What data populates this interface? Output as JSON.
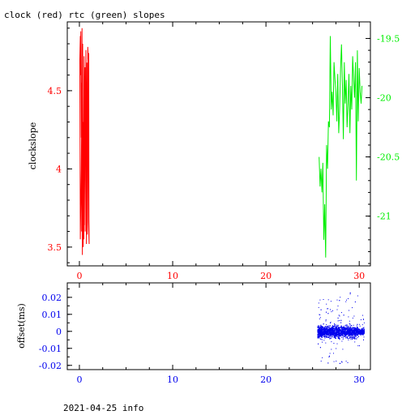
{
  "title": "clock (red) rtc (green) slopes",
  "footer": "2021-04-25 info",
  "colors": {
    "clock": "#ff0000",
    "rtc": "#00ee00",
    "offset": "#0000ee",
    "axes": "#000000",
    "background": "#ffffff"
  },
  "chart_data": [
    {
      "type": "line",
      "ylabel": "clockslope",
      "xlim": [
        -1.3,
        31.2
      ],
      "ylim": [
        3.38,
        4.94
      ],
      "y2lim": [
        -21.42,
        -19.36
      ],
      "x_ticks": [
        0,
        10,
        20,
        30
      ],
      "y_ticks": [
        3.5,
        4,
        4.5
      ],
      "y_tick_labels": [
        "3.5",
        "4",
        "4.5"
      ],
      "y2_ticks": [
        -21,
        -20.5,
        -20,
        -19.5
      ],
      "y2_tick_labels": [
        "-21",
        "-20.5",
        "-20",
        "-19.5"
      ],
      "series": [
        {
          "color": "#ff0000",
          "axis": "left",
          "x": [
            0.05,
            0.1,
            0.12,
            0.15,
            0.2,
            0.22,
            0.25,
            0.28,
            0.3,
            0.32,
            0.35,
            0.38,
            0.4,
            0.42,
            0.45,
            0.48,
            0.5,
            0.55,
            0.6,
            0.62,
            0.65,
            0.7,
            0.75,
            0.8,
            0.85,
            0.9,
            0.95,
            1.0,
            1.02,
            1.05,
            0.98,
            0.9,
            0.8,
            0.7,
            0.6,
            0.5,
            0.4,
            0.3,
            0.2,
            0.1,
            0.05
          ],
          "y": [
            4.7,
            4.85,
            4.6,
            4.88,
            4.2,
            4.55,
            3.6,
            4.9,
            4.0,
            3.45,
            4.8,
            3.5,
            4.0,
            3.7,
            4.3,
            3.55,
            4.72,
            3.95,
            4.65,
            3.6,
            4.1,
            4.76,
            3.52,
            4.68,
            3.58,
            4.78,
            4.7,
            4.74,
            3.68,
            3.52,
            3.66,
            4.72,
            3.6,
            4.66,
            3.64,
            4.7,
            3.5,
            4.78,
            4.0,
            3.55,
            4.7
          ]
        },
        {
          "color": "#00ee00",
          "axis": "right",
          "x": [
            25.7,
            25.8,
            25.9,
            26.0,
            26.1,
            26.2,
            26.3,
            26.4,
            26.5,
            26.6,
            26.7,
            26.8,
            26.9,
            27.0,
            27.1,
            27.2,
            27.3,
            27.4,
            27.5,
            27.6,
            27.7,
            27.8,
            27.9,
            28.0,
            28.1,
            28.2,
            28.3,
            28.4,
            28.5,
            28.6,
            28.7,
            28.8,
            28.9,
            29.0,
            29.1,
            29.2,
            29.3,
            29.4,
            29.5,
            29.6,
            29.7,
            29.8,
            29.9,
            30.0,
            30.1,
            30.2,
            30.3
          ],
          "y": [
            -20.5,
            -20.75,
            -20.6,
            -20.8,
            -20.55,
            -21.2,
            -20.9,
            -21.35,
            -20.4,
            -20.6,
            -20.2,
            -20.25,
            -19.48,
            -20.1,
            -19.95,
            -20.15,
            -19.7,
            -19.85,
            -19.95,
            -20.2,
            -19.8,
            -20.3,
            -20.1,
            -19.75,
            -19.55,
            -19.9,
            -20.35,
            -19.7,
            -20.05,
            -19.85,
            -20.25,
            -20.05,
            -19.8,
            -20.3,
            -19.9,
            -20.1,
            -19.65,
            -19.85,
            -20.0,
            -19.7,
            -20.7,
            -19.6,
            -20.2,
            -19.75,
            -19.95,
            -20.05,
            -19.9
          ]
        }
      ]
    },
    {
      "type": "scatter",
      "ylabel": "offset(ms)",
      "xlim": [
        -1.3,
        31.2
      ],
      "ylim": [
        -0.0225,
        0.0285
      ],
      "x_ticks": [
        0,
        10,
        20,
        30
      ],
      "y_ticks": [
        -0.02,
        -0.01,
        0,
        0.01,
        0.02
      ],
      "y_tick_labels": [
        "-0.02",
        "-0.01",
        "0",
        "0.01",
        "0.02"
      ],
      "series": [
        {
          "color": "#0000ee",
          "x_range": [
            25.5,
            30.5
          ],
          "center": 0.0,
          "typical_spread": [
            -0.006,
            0.006
          ],
          "extremes": [
            -0.021,
            0.026
          ]
        }
      ]
    }
  ]
}
